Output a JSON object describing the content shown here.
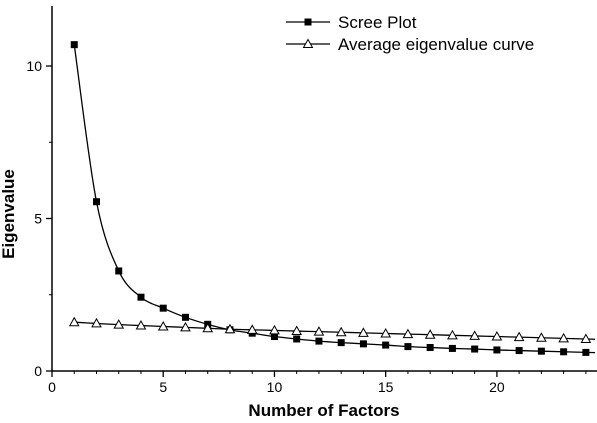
{
  "chart_data": {
    "type": "line",
    "title": "",
    "xlabel": "Number of Factors",
    "ylabel": "Eigenvalue",
    "xlim": [
      0,
      24.5
    ],
    "ylim": [
      0,
      12
    ],
    "xticks": [
      0,
      5,
      10,
      15,
      20
    ],
    "yticks": [
      0,
      5,
      10
    ],
    "grid": false,
    "legend": "top-right",
    "series": [
      {
        "name": "Scree Plot",
        "marker": "filled-square",
        "color": "#000000",
        "x": [
          1,
          2,
          3,
          4,
          5,
          6,
          7,
          8,
          9,
          10,
          11,
          12,
          13,
          14,
          15,
          16,
          17,
          18,
          19,
          20,
          21,
          22,
          23,
          24
        ],
        "y": [
          10.7,
          5.55,
          3.28,
          2.42,
          2.06,
          1.76,
          1.53,
          1.35,
          1.24,
          1.13,
          1.05,
          0.98,
          0.93,
          0.89,
          0.85,
          0.8,
          0.77,
          0.74,
          0.72,
          0.69,
          0.67,
          0.65,
          0.63,
          0.61
        ]
      },
      {
        "name": "Average eigenvalue curve",
        "marker": "open-triangle",
        "color": "#000000",
        "x": [
          1,
          2,
          3,
          4,
          5,
          6,
          7,
          8,
          9,
          10,
          11,
          12,
          13,
          14,
          15,
          16,
          17,
          18,
          19,
          20,
          21,
          22,
          23,
          24
        ],
        "y": [
          1.6,
          1.56,
          1.52,
          1.49,
          1.46,
          1.43,
          1.4,
          1.37,
          1.35,
          1.33,
          1.31,
          1.29,
          1.27,
          1.25,
          1.23,
          1.21,
          1.19,
          1.17,
          1.15,
          1.13,
          1.11,
          1.09,
          1.07,
          1.05
        ]
      }
    ]
  }
}
